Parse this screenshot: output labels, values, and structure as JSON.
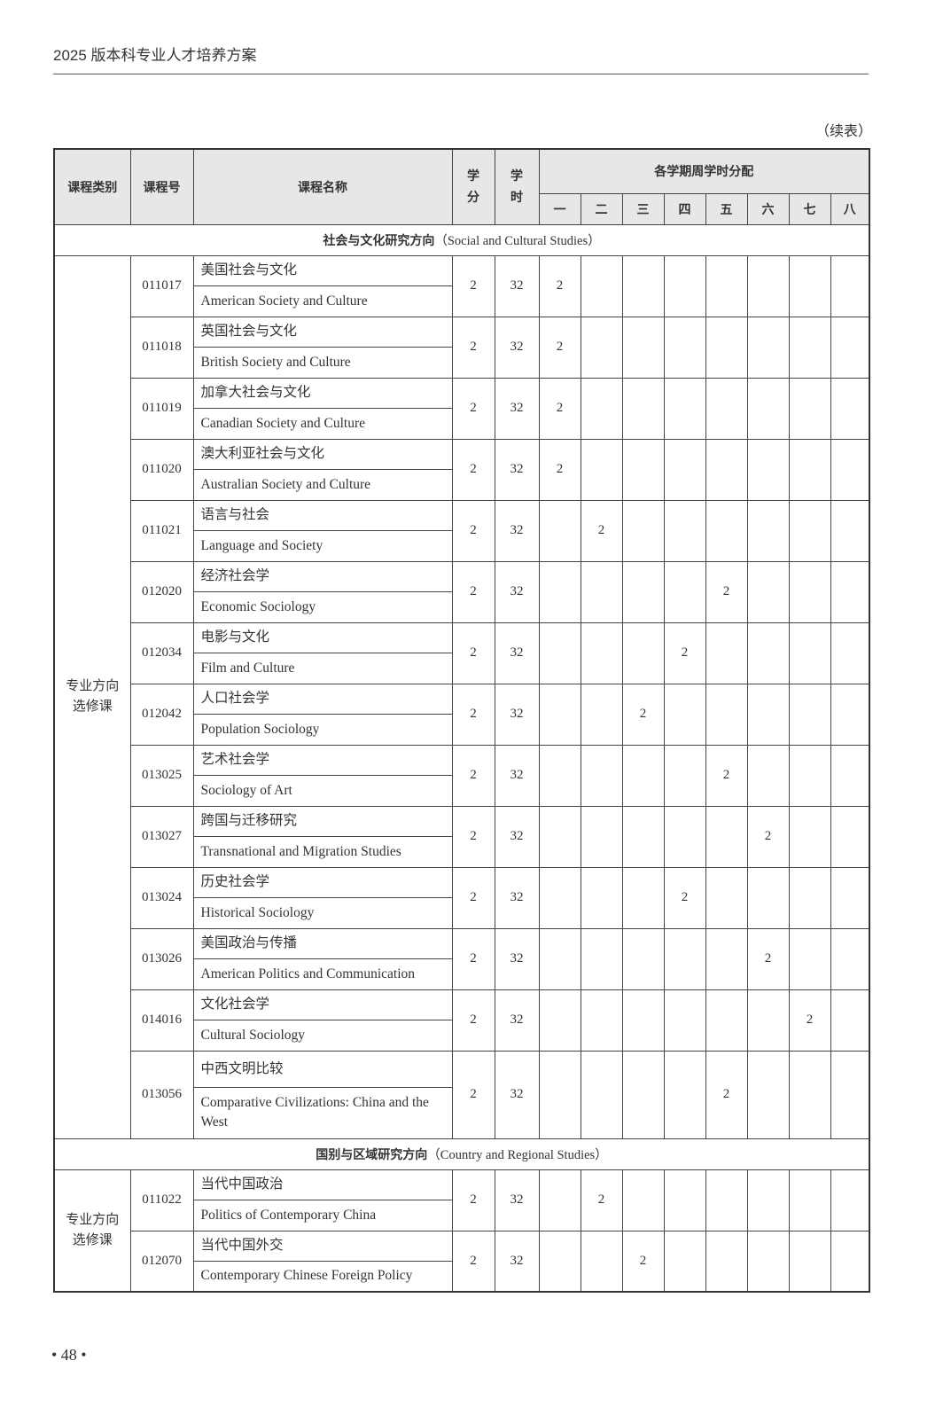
{
  "header": {
    "running_title": "2025 版本科专业人才培养方案",
    "continued": "（续表）"
  },
  "table": {
    "columns": {
      "category": "课程类别",
      "code": "课程号",
      "name": "课程名称",
      "credits": "学\n分",
      "hours": "学\n时",
      "semesters_title": "各学期周学时分配"
    },
    "semesters": [
      "一",
      "二",
      "三",
      "四",
      "五",
      "六",
      "七",
      "八"
    ],
    "sections": [
      {
        "title_cn": "社会与文化研究方向",
        "title_en": "（Social and Cultural Studies）",
        "category": "专业方向\n选修课",
        "courses": [
          {
            "code": "011017",
            "name_cn": "美国社会与文化",
            "name_en": "American Society and Culture",
            "credits": "2",
            "hours": "32",
            "semester": 1,
            "weekly": "2"
          },
          {
            "code": "011018",
            "name_cn": "英国社会与文化",
            "name_en": "British Society and Culture",
            "credits": "2",
            "hours": "32",
            "semester": 1,
            "weekly": "2"
          },
          {
            "code": "011019",
            "name_cn": "加拿大社会与文化",
            "name_en": "Canadian Society and Culture",
            "credits": "2",
            "hours": "32",
            "semester": 1,
            "weekly": "2"
          },
          {
            "code": "011020",
            "name_cn": "澳大利亚社会与文化",
            "name_en": "Australian Society and Culture",
            "credits": "2",
            "hours": "32",
            "semester": 1,
            "weekly": "2"
          },
          {
            "code": "011021",
            "name_cn": "语言与社会",
            "name_en": "Language and Society",
            "credits": "2",
            "hours": "32",
            "semester": 2,
            "weekly": "2"
          },
          {
            "code": "012020",
            "name_cn": "经济社会学",
            "name_en": "Economic Sociology",
            "credits": "2",
            "hours": "32",
            "semester": 5,
            "weekly": "2"
          },
          {
            "code": "012034",
            "name_cn": "电影与文化",
            "name_en": "Film and Culture",
            "credits": "2",
            "hours": "32",
            "semester": 4,
            "weekly": "2"
          },
          {
            "code": "012042",
            "name_cn": "人口社会学",
            "name_en": "Population Sociology",
            "credits": "2",
            "hours": "32",
            "semester": 3,
            "weekly": "2"
          },
          {
            "code": "013025",
            "name_cn": "艺术社会学",
            "name_en": "Sociology of Art",
            "credits": "2",
            "hours": "32",
            "semester": 5,
            "weekly": "2"
          },
          {
            "code": "013027",
            "name_cn": "跨国与迁移研究",
            "name_en": "Transnational and Migration Studies",
            "credits": "2",
            "hours": "32",
            "semester": 6,
            "weekly": "2"
          },
          {
            "code": "013024",
            "name_cn": "历史社会学",
            "name_en": "Historical Sociology",
            "credits": "2",
            "hours": "32",
            "semester": 4,
            "weekly": "2"
          },
          {
            "code": "013026",
            "name_cn": "美国政治与传播",
            "name_en": "American Politics and Communication",
            "credits": "2",
            "hours": "32",
            "semester": 6,
            "weekly": "2"
          },
          {
            "code": "014016",
            "name_cn": "文化社会学",
            "name_en": "Cultural Sociology",
            "credits": "2",
            "hours": "32",
            "semester": 7,
            "weekly": "2"
          },
          {
            "code": "013056",
            "name_cn": "中西文明比较",
            "name_en": "Comparative Civilizations: China and the West",
            "credits": "2",
            "hours": "32",
            "semester": 5,
            "weekly": "2",
            "tall": true
          }
        ]
      },
      {
        "title_cn": "国别与区域研究方向",
        "title_en": "（Country and Regional Studies）",
        "category": "专业方向\n选修课",
        "courses": [
          {
            "code": "011022",
            "name_cn": "当代中国政治",
            "name_en": "Politics of Contemporary China",
            "credits": "2",
            "hours": "32",
            "semester": 2,
            "weekly": "2"
          },
          {
            "code": "012070",
            "name_cn": "当代中国外交",
            "name_en": "Contemporary Chinese Foreign Policy",
            "credits": "2",
            "hours": "32",
            "semester": 3,
            "weekly": "2"
          }
        ]
      }
    ]
  },
  "footer": {
    "page_number": "• 48 •"
  }
}
